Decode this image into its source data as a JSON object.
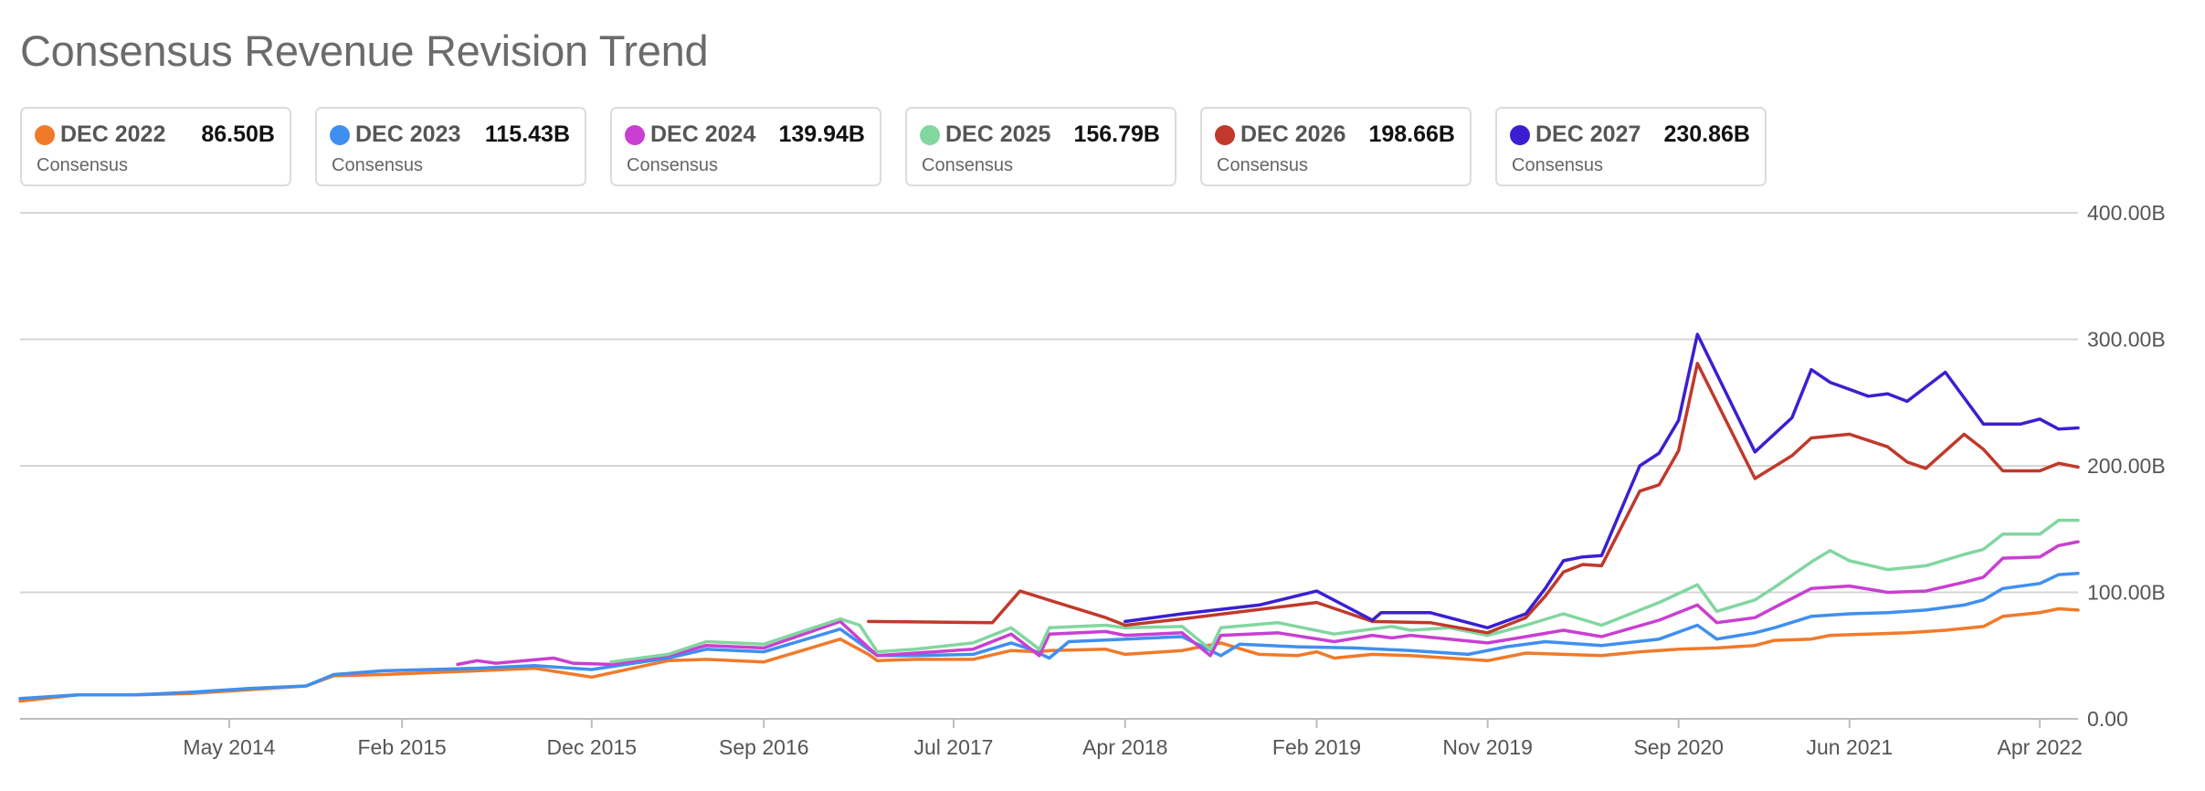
{
  "title": "Consensus Revenue Revision Trend",
  "legend": [
    {
      "name": "DEC 2022",
      "value": "86.50B",
      "sub": "Consensus",
      "color": "#f07a2a"
    },
    {
      "name": "DEC 2023",
      "value": "115.43B",
      "sub": "Consensus",
      "color": "#3f8ff0"
    },
    {
      "name": "DEC 2024",
      "value": "139.94B",
      "sub": "Consensus",
      "color": "#c93fd1"
    },
    {
      "name": "DEC 2025",
      "value": "156.79B",
      "sub": "Consensus",
      "color": "#82d6a0"
    },
    {
      "name": "DEC 2026",
      "value": "198.66B",
      "sub": "Consensus",
      "color": "#c0392b"
    },
    {
      "name": "DEC 2027",
      "value": "230.86B",
      "sub": "Consensus",
      "color": "#3a1fd1"
    }
  ],
  "chart_data": {
    "type": "line",
    "title": "Consensus Revenue Revision Trend",
    "xlabel": "",
    "ylabel": "",
    "ylim": [
      0,
      400
    ],
    "y_unit": "B",
    "xlim": [
      "2013-06-01",
      "2022-06-01"
    ],
    "x_ticks": [
      {
        "date": "2014-05-01",
        "label": "May 2014"
      },
      {
        "date": "2015-02-01",
        "label": "Feb 2015"
      },
      {
        "date": "2015-12-01",
        "label": "Dec 2015"
      },
      {
        "date": "2016-09-01",
        "label": "Sep 2016"
      },
      {
        "date": "2017-07-01",
        "label": "Jul 2017"
      },
      {
        "date": "2018-04-01",
        "label": "Apr 2018"
      },
      {
        "date": "2019-02-01",
        "label": "Feb 2019"
      },
      {
        "date": "2019-11-01",
        "label": "Nov 2019"
      },
      {
        "date": "2020-09-01",
        "label": "Sep 2020"
      },
      {
        "date": "2021-06-01",
        "label": "Jun 2021"
      },
      {
        "date": "2022-04-01",
        "label": "Apr 2022"
      }
    ],
    "y_ticks": [
      {
        "value": 0,
        "label": "0.00"
      },
      {
        "value": 100,
        "label": "100.00B"
      },
      {
        "value": 200,
        "label": "200.00B"
      },
      {
        "value": 300,
        "label": "300.00B"
      },
      {
        "value": 400,
        "label": "400.00B"
      }
    ],
    "grid": true,
    "legend_position": "top",
    "series": [
      {
        "name": "DEC 2022",
        "color": "#f07a2a",
        "points": [
          [
            "2013-06-01",
            14
          ],
          [
            "2013-09-01",
            19
          ],
          [
            "2013-12-01",
            19
          ],
          [
            "2014-03-01",
            20
          ],
          [
            "2014-06-01",
            23
          ],
          [
            "2014-09-01",
            26
          ],
          [
            "2014-10-15",
            34
          ],
          [
            "2015-01-01",
            35
          ],
          [
            "2015-06-01",
            38
          ],
          [
            "2015-09-01",
            40
          ],
          [
            "2015-12-01",
            33
          ],
          [
            "2016-04-01",
            46
          ],
          [
            "2016-06-01",
            47
          ],
          [
            "2016-09-01",
            45
          ],
          [
            "2017-01-01",
            63
          ],
          [
            "2017-02-15",
            51
          ],
          [
            "2017-03-01",
            46
          ],
          [
            "2017-05-01",
            47
          ],
          [
            "2017-08-01",
            47
          ],
          [
            "2017-10-01",
            54
          ],
          [
            "2017-11-15",
            53
          ],
          [
            "2017-12-01",
            54
          ],
          [
            "2018-03-01",
            55
          ],
          [
            "2018-04-01",
            51
          ],
          [
            "2018-07-01",
            54
          ],
          [
            "2018-09-01",
            60
          ],
          [
            "2018-11-01",
            51
          ],
          [
            "2019-01-01",
            50
          ],
          [
            "2019-02-01",
            53
          ],
          [
            "2019-03-01",
            48
          ],
          [
            "2019-05-01",
            51
          ],
          [
            "2019-07-01",
            50
          ],
          [
            "2019-09-01",
            48
          ],
          [
            "2019-11-01",
            46
          ],
          [
            "2020-01-01",
            52
          ],
          [
            "2020-03-01",
            51
          ],
          [
            "2020-05-01",
            50
          ],
          [
            "2020-07-01",
            53
          ],
          [
            "2020-09-01",
            55
          ],
          [
            "2020-11-01",
            56
          ],
          [
            "2021-01-01",
            58
          ],
          [
            "2021-02-01",
            62
          ],
          [
            "2021-04-01",
            63
          ],
          [
            "2021-05-01",
            66
          ],
          [
            "2021-07-01",
            67
          ],
          [
            "2021-09-01",
            68
          ],
          [
            "2021-11-01",
            70
          ],
          [
            "2022-01-01",
            73
          ],
          [
            "2022-02-01",
            81
          ],
          [
            "2022-04-01",
            84
          ],
          [
            "2022-05-01",
            87
          ],
          [
            "2022-06-01",
            86
          ]
        ]
      },
      {
        "name": "DEC 2023",
        "color": "#3f8ff0",
        "points": [
          [
            "2013-06-01",
            16
          ],
          [
            "2013-09-01",
            19
          ],
          [
            "2013-12-01",
            19
          ],
          [
            "2014-03-01",
            21
          ],
          [
            "2014-06-01",
            24
          ],
          [
            "2014-09-01",
            26
          ],
          [
            "2014-10-15",
            35
          ],
          [
            "2015-01-01",
            38
          ],
          [
            "2015-06-01",
            40
          ],
          [
            "2015-09-01",
            42
          ],
          [
            "2015-12-01",
            39
          ],
          [
            "2016-04-01",
            48
          ],
          [
            "2016-06-01",
            55
          ],
          [
            "2016-09-01",
            53
          ],
          [
            "2017-01-01",
            71
          ],
          [
            "2017-03-01",
            50
          ],
          [
            "2017-05-01",
            50
          ],
          [
            "2017-08-01",
            51
          ],
          [
            "2017-10-01",
            60
          ],
          [
            "2017-11-01",
            55
          ],
          [
            "2017-12-01",
            48
          ],
          [
            "2018-01-01",
            61
          ],
          [
            "2018-04-01",
            63
          ],
          [
            "2018-07-01",
            65
          ],
          [
            "2018-09-01",
            50
          ],
          [
            "2018-10-01",
            59
          ],
          [
            "2019-01-01",
            57
          ],
          [
            "2019-04-01",
            56
          ],
          [
            "2019-07-01",
            54
          ],
          [
            "2019-10-01",
            51
          ],
          [
            "2019-12-01",
            57
          ],
          [
            "2020-02-01",
            61
          ],
          [
            "2020-05-01",
            58
          ],
          [
            "2020-08-01",
            63
          ],
          [
            "2020-10-01",
            74
          ],
          [
            "2020-11-01",
            63
          ],
          [
            "2021-01-01",
            68
          ],
          [
            "2021-02-01",
            72
          ],
          [
            "2021-04-01",
            81
          ],
          [
            "2021-06-01",
            83
          ],
          [
            "2021-08-01",
            84
          ],
          [
            "2021-10-01",
            86
          ],
          [
            "2021-12-01",
            90
          ],
          [
            "2022-01-01",
            94
          ],
          [
            "2022-02-01",
            103
          ],
          [
            "2022-04-01",
            107
          ],
          [
            "2022-05-01",
            114
          ],
          [
            "2022-06-01",
            115
          ]
        ]
      },
      {
        "name": "DEC 2024",
        "color": "#c93fd1",
        "points": [
          [
            "2015-05-01",
            43
          ],
          [
            "2015-06-01",
            46
          ],
          [
            "2015-07-01",
            44
          ],
          [
            "2015-10-01",
            48
          ],
          [
            "2015-11-01",
            44
          ],
          [
            "2016-01-01",
            43
          ],
          [
            "2016-04-01",
            50
          ],
          [
            "2016-06-01",
            58
          ],
          [
            "2016-09-01",
            56
          ],
          [
            "2017-01-01",
            77
          ],
          [
            "2017-03-01",
            50
          ],
          [
            "2017-05-01",
            52
          ],
          [
            "2017-08-01",
            55
          ],
          [
            "2017-10-01",
            67
          ],
          [
            "2017-11-15",
            50
          ],
          [
            "2017-12-01",
            67
          ],
          [
            "2018-03-01",
            69
          ],
          [
            "2018-04-01",
            66
          ],
          [
            "2018-07-01",
            68
          ],
          [
            "2018-08-15",
            50
          ],
          [
            "2018-09-01",
            66
          ],
          [
            "2018-12-01",
            68
          ],
          [
            "2019-03-01",
            61
          ],
          [
            "2019-05-01",
            66
          ],
          [
            "2019-06-01",
            64
          ],
          [
            "2019-07-01",
            66
          ],
          [
            "2019-09-01",
            63
          ],
          [
            "2019-11-01",
            60
          ],
          [
            "2020-01-01",
            65
          ],
          [
            "2020-03-01",
            70
          ],
          [
            "2020-05-01",
            65
          ],
          [
            "2020-08-01",
            78
          ],
          [
            "2020-10-01",
            90
          ],
          [
            "2020-11-01",
            76
          ],
          [
            "2021-01-01",
            80
          ],
          [
            "2021-02-01",
            88
          ],
          [
            "2021-04-01",
            103
          ],
          [
            "2021-06-01",
            105
          ],
          [
            "2021-08-01",
            100
          ],
          [
            "2021-10-01",
            101
          ],
          [
            "2021-12-01",
            108
          ],
          [
            "2022-01-01",
            112
          ],
          [
            "2022-02-01",
            127
          ],
          [
            "2022-04-01",
            128
          ],
          [
            "2022-05-01",
            137
          ],
          [
            "2022-06-01",
            140
          ]
        ]
      },
      {
        "name": "DEC 2025",
        "color": "#82d6a0",
        "points": [
          [
            "2016-01-01",
            45
          ],
          [
            "2016-04-01",
            51
          ],
          [
            "2016-06-01",
            61
          ],
          [
            "2016-09-01",
            59
          ],
          [
            "2017-01-01",
            79
          ],
          [
            "2017-02-01",
            74
          ],
          [
            "2017-03-01",
            53
          ],
          [
            "2017-05-01",
            55
          ],
          [
            "2017-08-01",
            60
          ],
          [
            "2017-10-01",
            72
          ],
          [
            "2017-11-15",
            55
          ],
          [
            "2017-12-01",
            72
          ],
          [
            "2018-03-01",
            74
          ],
          [
            "2018-04-01",
            72
          ],
          [
            "2018-07-01",
            73
          ],
          [
            "2018-08-15",
            55
          ],
          [
            "2018-09-01",
            72
          ],
          [
            "2018-12-01",
            76
          ],
          [
            "2019-03-01",
            67
          ],
          [
            "2019-06-01",
            73
          ],
          [
            "2019-07-01",
            70
          ],
          [
            "2019-09-01",
            72
          ],
          [
            "2019-11-01",
            66
          ],
          [
            "2020-01-01",
            74
          ],
          [
            "2020-03-01",
            83
          ],
          [
            "2020-05-01",
            74
          ],
          [
            "2020-08-01",
            92
          ],
          [
            "2020-10-01",
            106
          ],
          [
            "2020-11-01",
            85
          ],
          [
            "2021-01-01",
            94
          ],
          [
            "2021-02-01",
            104
          ],
          [
            "2021-04-01",
            124
          ],
          [
            "2021-05-01",
            133
          ],
          [
            "2021-06-01",
            125
          ],
          [
            "2021-08-01",
            118
          ],
          [
            "2021-10-01",
            121
          ],
          [
            "2021-12-01",
            130
          ],
          [
            "2022-01-01",
            134
          ],
          [
            "2022-02-01",
            146
          ],
          [
            "2022-04-01",
            146
          ],
          [
            "2022-05-01",
            157
          ],
          [
            "2022-06-01",
            157
          ]
        ]
      },
      {
        "name": "DEC 2026",
        "color": "#c0392b",
        "points": [
          [
            "2017-02-15",
            77
          ],
          [
            "2017-09-01",
            76
          ],
          [
            "2017-10-15",
            101
          ],
          [
            "2018-03-01",
            80
          ],
          [
            "2018-04-01",
            74
          ],
          [
            "2018-07-01",
            79
          ],
          [
            "2019-02-01",
            92
          ],
          [
            "2019-05-01",
            77
          ],
          [
            "2019-08-01",
            76
          ],
          [
            "2019-11-01",
            68
          ],
          [
            "2020-01-01",
            80
          ],
          [
            "2020-02-01",
            97
          ],
          [
            "2020-03-01",
            116
          ],
          [
            "2020-04-01",
            122
          ],
          [
            "2020-05-01",
            121
          ],
          [
            "2020-07-01",
            180
          ],
          [
            "2020-08-01",
            185
          ],
          [
            "2020-09-01",
            212
          ],
          [
            "2020-10-01",
            281
          ],
          [
            "2021-01-01",
            190
          ],
          [
            "2021-03-01",
            208
          ],
          [
            "2021-04-01",
            222
          ],
          [
            "2021-06-01",
            225
          ],
          [
            "2021-08-01",
            215
          ],
          [
            "2021-09-01",
            203
          ],
          [
            "2021-10-01",
            198
          ],
          [
            "2021-12-01",
            225
          ],
          [
            "2022-01-01",
            213
          ],
          [
            "2022-02-01",
            196
          ],
          [
            "2022-04-01",
            196
          ],
          [
            "2022-05-01",
            202
          ],
          [
            "2022-06-01",
            199
          ]
        ]
      },
      {
        "name": "DEC 2027",
        "color": "#3a1fd1",
        "points": [
          [
            "2018-04-01",
            77
          ],
          [
            "2018-07-01",
            83
          ],
          [
            "2018-11-01",
            90
          ],
          [
            "2019-02-01",
            101
          ],
          [
            "2019-05-01",
            78
          ],
          [
            "2019-05-15",
            84
          ],
          [
            "2019-08-01",
            84
          ],
          [
            "2019-11-01",
            72
          ],
          [
            "2020-01-01",
            83
          ],
          [
            "2020-02-01",
            103
          ],
          [
            "2020-03-01",
            125
          ],
          [
            "2020-04-01",
            128
          ],
          [
            "2020-05-01",
            129
          ],
          [
            "2020-07-01",
            200
          ],
          [
            "2020-08-01",
            210
          ],
          [
            "2020-09-01",
            236
          ],
          [
            "2020-10-01",
            304
          ],
          [
            "2021-01-01",
            211
          ],
          [
            "2021-03-01",
            238
          ],
          [
            "2021-04-01",
            276
          ],
          [
            "2021-05-01",
            266
          ],
          [
            "2021-07-01",
            255
          ],
          [
            "2021-08-01",
            257
          ],
          [
            "2021-09-01",
            251
          ],
          [
            "2021-11-01",
            274
          ],
          [
            "2022-01-01",
            233
          ],
          [
            "2022-03-01",
            233
          ],
          [
            "2022-04-01",
            237
          ],
          [
            "2022-05-01",
            229
          ],
          [
            "2022-06-01",
            230
          ]
        ]
      }
    ]
  }
}
